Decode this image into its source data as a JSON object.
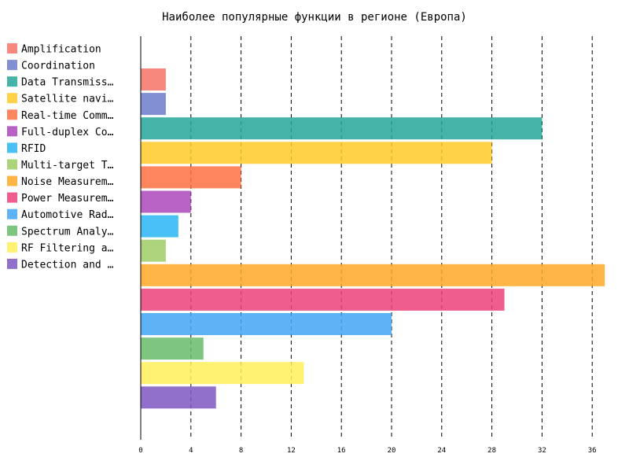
{
  "chart_data": {
    "type": "bar",
    "orientation": "horizontal",
    "title": "Наиболее популярные функции в регионе (Европа)",
    "xlabel": "",
    "ylabel": "",
    "xlim": [
      0,
      37.5
    ],
    "xticks": [
      0,
      4,
      8,
      12,
      16,
      20,
      24,
      28,
      32,
      36
    ],
    "grid": "vertical dashed",
    "legend_position": "left",
    "categories": [
      {
        "label": "Amplification",
        "legend_label": "Amplification",
        "value": 2,
        "color": "#f57367"
      },
      {
        "label": "Coordination",
        "legend_label": "Coordination",
        "value": 2,
        "color": "#6d7bcb"
      },
      {
        "label": "Data Transmission",
        "legend_label": "Data Transmiss…",
        "value": 32,
        "color": "#26a69a"
      },
      {
        "label": "Satellite navigation",
        "legend_label": "Satellite navi…",
        "value": 28,
        "color": "#ffca28"
      },
      {
        "label": "Real-time Communication",
        "legend_label": "Real-time Comm…",
        "value": 8,
        "color": "#ff7043"
      },
      {
        "label": "Full-duplex Communication",
        "legend_label": "Full-duplex Co…",
        "value": 4,
        "color": "#ab47bc"
      },
      {
        "label": "RFID",
        "legend_label": "RFID",
        "value": 3,
        "color": "#29b6f6"
      },
      {
        "label": "Multi-target Tracking",
        "legend_label": "Multi-target T…",
        "value": 2,
        "color": "#9ccc65"
      },
      {
        "label": "Noise Measurement",
        "legend_label": "Noise Measurem…",
        "value": 37,
        "color": "#ffa726"
      },
      {
        "label": "Power Measurement",
        "legend_label": "Power Measurem…",
        "value": 29,
        "color": "#ec407a"
      },
      {
        "label": "Automotive Radar",
        "legend_label": "Automotive Rad…",
        "value": 20,
        "color": "#42a5f5"
      },
      {
        "label": "Spectrum Analysis",
        "legend_label": "Spectrum Analy…",
        "value": 5,
        "color": "#66bb6a"
      },
      {
        "label": "RF Filtering and Processing",
        "legend_label": "RF Filtering a…",
        "value": 13,
        "color": "#ffee58"
      },
      {
        "label": "Detection and Ranging",
        "legend_label": "Detection and …",
        "value": 6,
        "color": "#7e57c2"
      }
    ]
  }
}
